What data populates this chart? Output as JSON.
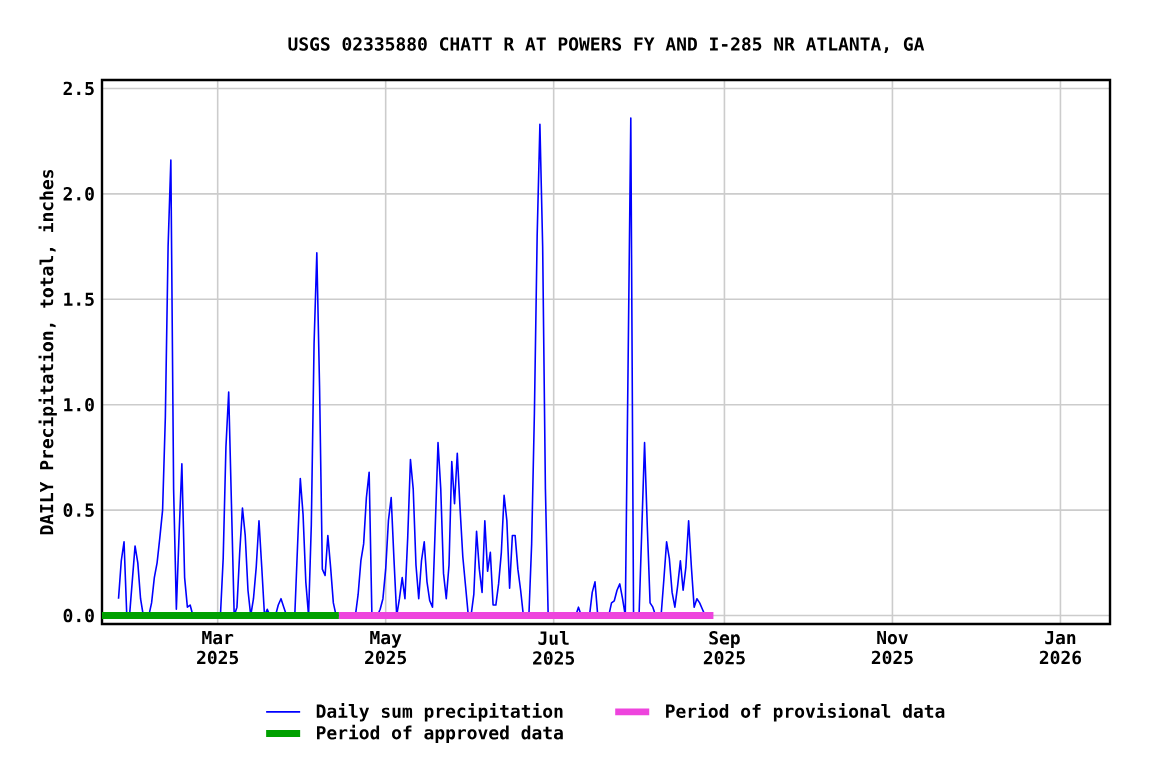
{
  "chart_data": {
    "type": "line",
    "title": "USGS 02335880 CHATT R AT POWERS FY AND I-285 NR ATLANTA, GA",
    "ylabel": "DAILY Precipitation, total, inches",
    "xlim": [
      "2025-01-18",
      "2026-01-19"
    ],
    "ylim": [
      -0.04,
      2.54
    ],
    "xticks": [
      {
        "value": "2025-03-01",
        "label": "Mar 2025"
      },
      {
        "value": "2025-05-01",
        "label": "May 2025"
      },
      {
        "value": "2025-07-01",
        "label": "Jul 2025"
      },
      {
        "value": "2025-09-01",
        "label": "Sep 2025"
      },
      {
        "value": "2025-11-01",
        "label": "Nov 2025"
      },
      {
        "value": "2026-01-01",
        "label": "Jan 2026"
      }
    ],
    "yticks": [
      {
        "value": 0,
        "label": "0.0"
      },
      0.5,
      {
        "value": 1,
        "label": "1.0"
      },
      1.5,
      {
        "value": 2,
        "label": "2.0"
      },
      2.5
    ],
    "grid": true,
    "legend": "bottom",
    "series": [
      {
        "name": "Daily sum precipitation",
        "color": "#0000ff",
        "x": [
          "2025-01-24",
          "2025-01-25",
          "2025-01-26",
          "2025-01-27",
          "2025-01-28",
          "2025-01-30",
          "2025-01-31",
          "2025-02-01",
          "2025-02-02",
          "2025-02-04",
          "2025-02-05",
          "2025-02-06",
          "2025-02-07",
          "2025-02-08",
          "2025-02-09",
          "2025-02-10",
          "2025-02-11",
          "2025-02-12",
          "2025-02-13",
          "2025-02-14",
          "2025-02-15",
          "2025-02-16",
          "2025-02-17",
          "2025-02-18",
          "2025-02-19",
          "2025-02-20",
          "2025-03-02",
          "2025-03-03",
          "2025-03-04",
          "2025-03-05",
          "2025-03-06",
          "2025-03-07",
          "2025-03-08",
          "2025-03-09",
          "2025-03-10",
          "2025-03-11",
          "2025-03-12",
          "2025-03-13",
          "2025-03-14",
          "2025-03-15",
          "2025-03-16",
          "2025-03-17",
          "2025-03-18",
          "2025-03-19",
          "2025-03-20",
          "2025-03-22",
          "2025-03-23",
          "2025-03-24",
          "2025-03-25",
          "2025-03-26",
          "2025-03-29",
          "2025-03-30",
          "2025-03-31",
          "2025-04-01",
          "2025-04-02",
          "2025-04-03",
          "2025-04-04",
          "2025-04-05",
          "2025-04-06",
          "2025-04-07",
          "2025-04-08",
          "2025-04-09",
          "2025-04-10",
          "2025-04-11",
          "2025-04-12",
          "2025-04-13",
          "2025-04-20",
          "2025-04-21",
          "2025-04-22",
          "2025-04-23",
          "2025-04-24",
          "2025-04-25",
          "2025-04-26",
          "2025-04-28",
          "2025-04-29",
          "2025-04-30",
          "2025-05-01",
          "2025-05-02",
          "2025-05-03",
          "2025-05-04",
          "2025-05-05",
          "2025-05-06",
          "2025-05-07",
          "2025-05-08",
          "2025-05-09",
          "2025-05-10",
          "2025-05-11",
          "2025-05-12",
          "2025-05-13",
          "2025-05-14",
          "2025-05-15",
          "2025-05-16",
          "2025-05-17",
          "2025-05-18",
          "2025-05-19",
          "2025-05-20",
          "2025-05-21",
          "2025-05-22",
          "2025-05-23",
          "2025-05-24",
          "2025-05-25",
          "2025-05-26",
          "2025-05-27",
          "2025-05-28",
          "2025-05-29",
          "2025-05-30",
          "2025-05-31",
          "2025-06-01",
          "2025-06-02",
          "2025-06-03",
          "2025-06-04",
          "2025-06-05",
          "2025-06-06",
          "2025-06-07",
          "2025-06-08",
          "2025-06-09",
          "2025-06-10",
          "2025-06-11",
          "2025-06-12",
          "2025-06-13",
          "2025-06-14",
          "2025-06-15",
          "2025-06-16",
          "2025-06-17",
          "2025-06-18",
          "2025-06-19",
          "2025-06-20",
          "2025-06-22",
          "2025-06-23",
          "2025-06-24",
          "2025-06-25",
          "2025-06-26",
          "2025-06-27",
          "2025-06-28",
          "2025-06-29",
          "2025-07-09",
          "2025-07-10",
          "2025-07-11",
          "2025-07-14",
          "2025-07-15",
          "2025-07-16",
          "2025-07-17",
          "2025-07-21",
          "2025-07-22",
          "2025-07-23",
          "2025-07-24",
          "2025-07-25",
          "2025-07-26",
          "2025-07-27",
          "2025-07-28",
          "2025-07-29",
          "2025-07-30",
          "2025-08-01",
          "2025-08-02",
          "2025-08-03",
          "2025-08-04",
          "2025-08-05",
          "2025-08-06",
          "2025-08-07",
          "2025-08-09",
          "2025-08-10",
          "2025-08-11",
          "2025-08-12",
          "2025-08-13",
          "2025-08-14",
          "2025-08-15",
          "2025-08-16",
          "2025-08-17",
          "2025-08-18",
          "2025-08-19",
          "2025-08-20",
          "2025-08-21",
          "2025-08-22",
          "2025-08-23",
          "2025-08-24",
          "2025-08-25"
        ],
        "values": [
          0.08,
          0.26,
          0.35,
          0,
          0,
          0.33,
          0.25,
          0.08,
          0,
          0,
          0.06,
          0.18,
          0.25,
          0.37,
          0.5,
          0.94,
          1.75,
          2.16,
          0.6,
          0.03,
          0.39,
          0.72,
          0.18,
          0.04,
          0.05,
          0,
          0,
          0.27,
          0.8,
          1.06,
          0.53,
          0,
          0.04,
          0.3,
          0.51,
          0.38,
          0.12,
          0,
          0.08,
          0.23,
          0.45,
          0.23,
          0,
          0.03,
          0,
          0,
          0.05,
          0.08,
          0.04,
          0,
          0,
          0.33,
          0.65,
          0.48,
          0.16,
          0,
          0.43,
          1.29,
          1.72,
          1.08,
          0.22,
          0.19,
          0.38,
          0.23,
          0.06,
          0,
          0,
          0.1,
          0.26,
          0.34,
          0.56,
          0.68,
          0,
          0,
          0.03,
          0.08,
          0.22,
          0.45,
          0.56,
          0.27,
          0,
          0.08,
          0.18,
          0.08,
          0.37,
          0.74,
          0.6,
          0.24,
          0.08,
          0.26,
          0.35,
          0.16,
          0.07,
          0.04,
          0.42,
          0.82,
          0.6,
          0.2,
          0.08,
          0.24,
          0.73,
          0.53,
          0.77,
          0.51,
          0.28,
          0.14,
          0,
          0,
          0.1,
          0.4,
          0.22,
          0.11,
          0.45,
          0.21,
          0.3,
          0.05,
          0.05,
          0.15,
          0.3,
          0.57,
          0.45,
          0.13,
          0.38,
          0.38,
          0.22,
          0.12,
          0,
          0,
          0.34,
          0.96,
          1.8,
          2.33,
          1.75,
          0.6,
          0,
          0,
          0.04,
          0,
          0,
          0.11,
          0.16,
          0,
          0,
          0.06,
          0.07,
          0.12,
          0.15,
          0.08,
          0,
          1.17,
          2.36,
          0,
          0,
          0.41,
          0.82,
          0.42,
          0.06,
          0.04,
          0,
          0,
          0.17,
          0.35,
          0.27,
          0.11,
          0.04,
          0.14,
          0.26,
          0.12,
          0.23,
          0.45,
          0.23,
          0.04,
          0.08,
          0.06,
          0.03,
          0
        ]
      },
      {
        "name": "Period of provisional data",
        "color": "#ee44dd",
        "x": [
          "2025-04-14",
          "2025-08-28"
        ],
        "values": [
          0,
          0
        ]
      },
      {
        "name": "Period of approved data",
        "color": "#00a000",
        "x": [
          "2025-01-18",
          "2025-04-14"
        ],
        "values": [
          0,
          0
        ]
      }
    ]
  }
}
